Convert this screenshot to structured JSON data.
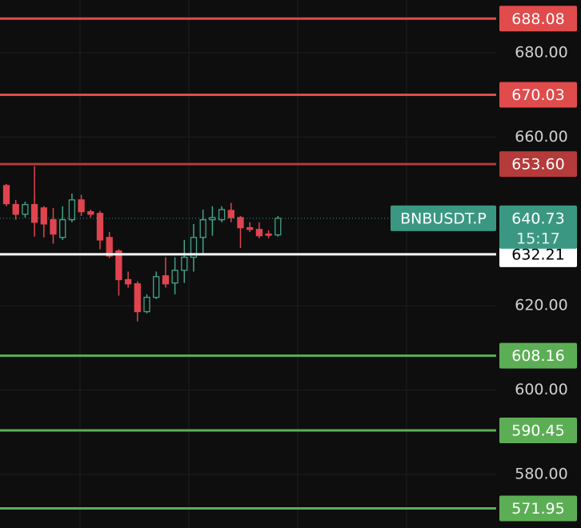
{
  "chart_data": {
    "type": "candlestick",
    "symbol": "BNBUSDT.P",
    "last_price": 640.73,
    "countdown": "15:17",
    "ylim": [
      567.3,
      692.5
    ],
    "yticks": [
      {
        "value": 580,
        "label": "580.00"
      },
      {
        "value": 600,
        "label": "600.00"
      },
      {
        "value": 620,
        "label": "620.00"
      },
      {
        "value": 660,
        "label": "660.00"
      },
      {
        "value": 680,
        "label": "680.00"
      }
    ],
    "grid": true,
    "up_color": "#3fa58c",
    "down_color": "#e0444f",
    "last_price_color": "#3a9882",
    "levels": [
      {
        "value": 688.08,
        "label": "688.08",
        "color": "#e04b4b",
        "text_color": "#ffffff"
      },
      {
        "value": 670.03,
        "label": "670.03",
        "color": "#e04b4b",
        "text_color": "#ffffff"
      },
      {
        "value": 653.6,
        "label": "653.60",
        "color": "#b53a3a",
        "text_color": "#ffffff"
      },
      {
        "value": 632.21,
        "label": "632.21",
        "color": "#ffffff",
        "text_color": "#000000"
      },
      {
        "value": 608.16,
        "label": "608.16",
        "color": "#5cae55",
        "text_color": "#ffffff"
      },
      {
        "value": 590.45,
        "label": "590.45",
        "color": "#5cae55",
        "text_color": "#ffffff"
      },
      {
        "value": 571.95,
        "label": "571.95",
        "color": "#5cae55",
        "text_color": "#ffffff"
      }
    ],
    "candles": {
      "open": [
        648.5,
        644.0,
        641.7,
        644.0,
        643.2,
        640.4,
        636.2,
        640.4,
        645.1,
        642.3,
        641.9,
        636.2,
        633.0,
        626.2,
        625.2,
        618.6,
        622.0,
        627.1,
        625.4,
        628.4,
        631.5,
        636.2,
        640.4,
        640.4,
        642.6,
        640.9,
        638.5,
        638.1,
        637.0,
        636.8
      ],
      "high": [
        648.9,
        645.1,
        644.7,
        653.1,
        643.6,
        643.2,
        643.6,
        646.6,
        646.3,
        642.8,
        642.5,
        637.5,
        633.4,
        628.1,
        625.8,
        622.7,
        628.1,
        631.5,
        631.5,
        635.6,
        639.4,
        642.8,
        643.6,
        643.6,
        644.4,
        641.3,
        639.8,
        639.8,
        637.9,
        641.3
      ],
      "low": [
        643.6,
        640.4,
        640.9,
        636.4,
        636.2,
        634.7,
        635.6,
        639.8,
        641.3,
        640.9,
        633.4,
        631.3,
        622.4,
        624.3,
        616.3,
        618.2,
        621.6,
        624.3,
        622.7,
        625.4,
        628.1,
        632.2,
        636.6,
        639.8,
        639.8,
        633.7,
        637.5,
        636.0,
        636.0,
        636.4
      ],
      "close": [
        644.2,
        641.7,
        644.0,
        639.8,
        639.4,
        637.0,
        640.4,
        645.1,
        642.3,
        641.7,
        635.6,
        631.8,
        626.2,
        625.2,
        618.6,
        622.0,
        626.9,
        625.2,
        628.4,
        631.5,
        636.2,
        640.4,
        640.9,
        642.8,
        640.9,
        638.5,
        638.1,
        636.6,
        636.8,
        640.73
      ]
    }
  }
}
